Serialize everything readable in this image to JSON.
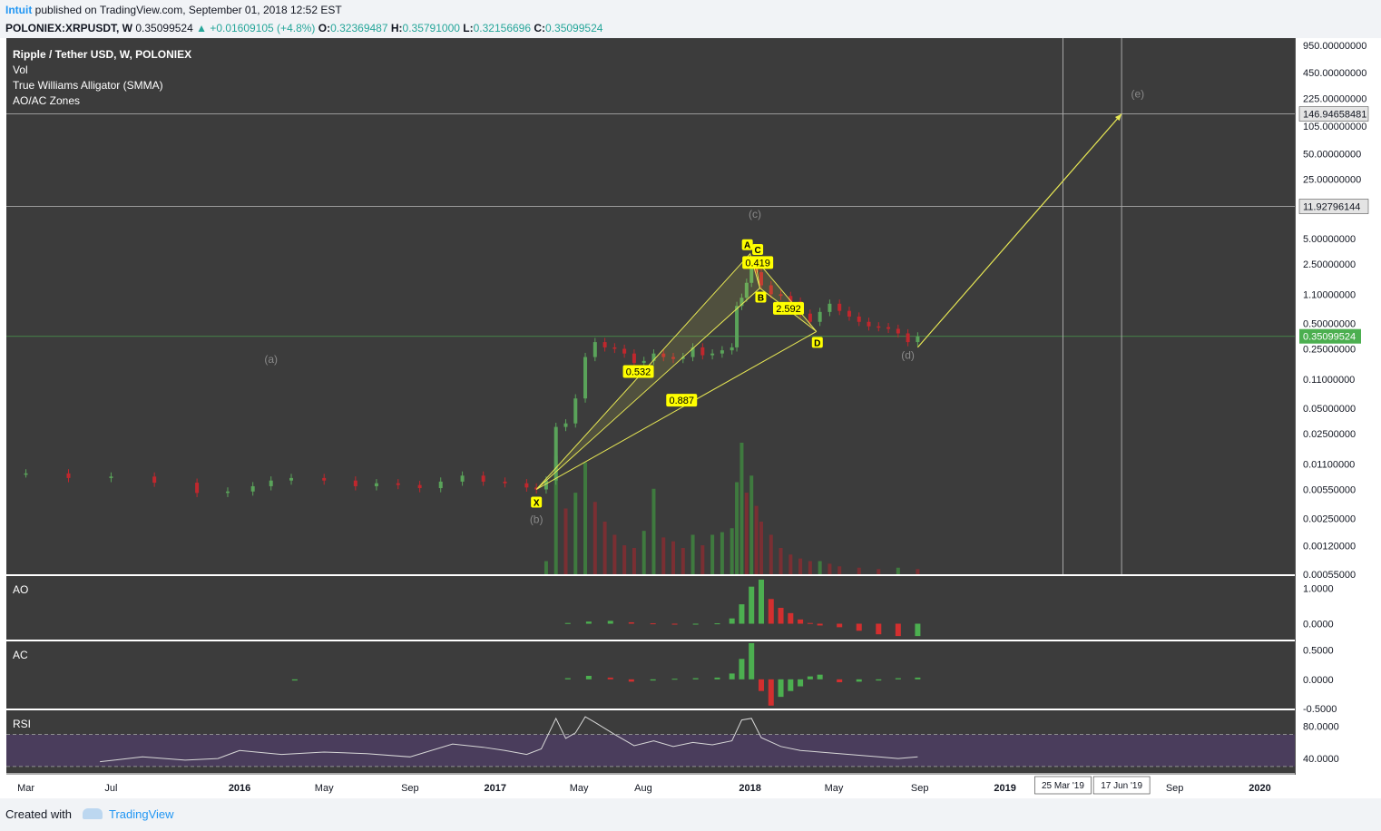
{
  "header": {
    "author": "Intuit",
    "published": "published on TradingView.com, September 01, 2018 12:52 EST",
    "symbol": "POLONIEX:XRPUSDT, W",
    "last": "0.35099524",
    "change": "▲ +0.01609105 (+4.8%)",
    "o_label": "O:",
    "o_value": "0.32369487",
    "h_label": "H:",
    "h_value": "0.35791000",
    "l_label": "L:",
    "l_value": "0.32156696",
    "c_label": "C:",
    "c_value": "0.35099524"
  },
  "footer": {
    "created_with": "Created with",
    "brand": "TradingView"
  },
  "colors": {
    "panel_bg": "#3c3c3c",
    "rsi_band": "#4a3d5c",
    "up": "#5aa35a",
    "down": "#c0272d",
    "pattern": "#e8e854",
    "label_bg": "#ffff00",
    "price_tag": "#4caf50",
    "text": "#ffffff",
    "muted": "#8a8a8a"
  },
  "chart_data": {
    "type": "candlestick",
    "scale": "log",
    "title": "Ripple / Tether USD, W, POLONIEX",
    "indicator_labels": [
      "Vol",
      "True Williams Alligator (SMMA)",
      "AO/AC Zones"
    ],
    "price_ticks": [
      "950.00000000",
      "450.00000000",
      "225.00000000",
      "105.00000000",
      "50.00000000",
      "25.00000000",
      "5.00000000",
      "2.50000000",
      "1.10000000",
      "0.50000000",
      "0.25000000",
      "0.11000000",
      "0.05000000",
      "0.02500000",
      "0.01100000",
      "0.00550000",
      "0.00250000",
      "0.00120000",
      "0.00055000"
    ],
    "price_tick_values": [
      950,
      450,
      225,
      105,
      50,
      25,
      5,
      2.5,
      1.1,
      0.5,
      0.25,
      0.11,
      0.05,
      0.025,
      0.011,
      0.0055,
      0.0025,
      0.0012,
      0.00055
    ],
    "ylim": [
      0.00055,
      1150
    ],
    "current_price": {
      "label": "0.35099524",
      "value": 0.35099524
    },
    "h_levels": [
      {
        "label": "146.94658481",
        "value": 146.94658481
      },
      {
        "label": "11.92796144",
        "value": 11.92796144
      }
    ],
    "x_ticks": [
      "Mar",
      "Jul",
      "2016",
      "May",
      "Sep",
      "2017",
      "May",
      "Aug",
      "2018",
      "May",
      "Sep",
      "2019",
      "Sep",
      "2020"
    ],
    "x_tick_dates": [
      "2015-03-01",
      "2015-07-01",
      "2016-01-01",
      "2016-05-01",
      "2016-09-01",
      "2017-01-01",
      "2017-05-01",
      "2017-08-01",
      "2018-01-01",
      "2018-05-01",
      "2018-09-01",
      "2019-01-01",
      "2019-09-01",
      "2020-01-01"
    ],
    "x_tick_bold": [
      false,
      false,
      true,
      false,
      false,
      true,
      false,
      false,
      true,
      false,
      false,
      true,
      false,
      true
    ],
    "x_range": [
      "2015-02-01",
      "2020-02-20"
    ],
    "vertical_markers": [
      {
        "label": "25 Mar '19",
        "date": "2019-03-25"
      },
      {
        "label": "17 Jun '19",
        "date": "2019-06-17"
      }
    ],
    "wave_labels": [
      {
        "text": "(a)",
        "date": "2016-02-15",
        "price": 0.17
      },
      {
        "text": "(b)",
        "date": "2017-03-01",
        "price": 0.0022
      },
      {
        "text": "(c)",
        "date": "2018-01-08",
        "price": 8.8
      },
      {
        "text": "(d)",
        "date": "2018-08-15",
        "price": 0.19
      },
      {
        "text": "(e)",
        "date": "2019-07-10",
        "price": 230
      }
    ],
    "xabcd_points": [
      {
        "name": "X",
        "date": "2017-03-01",
        "price": 0.0055
      },
      {
        "name": "A",
        "date": "2018-01-01",
        "price": 3.3
      },
      {
        "name": "B",
        "date": "2018-01-15",
        "price": 1.3
      },
      {
        "name": "C",
        "date": "2018-01-08",
        "price": 2.9
      },
      {
        "name": "D",
        "date": "2018-04-06",
        "price": 0.4
      }
    ],
    "xabcd_ratios": [
      {
        "text": "0.532",
        "date": "2017-07-25",
        "price": 0.135
      },
      {
        "text": "0.887",
        "date": "2017-09-25",
        "price": 0.062
      },
      {
        "text": "0.419",
        "date": "2018-01-12",
        "price": 2.6
      },
      {
        "text": "2.592",
        "date": "2018-02-25",
        "price": 0.75
      }
    ],
    "projection": {
      "from_date": "2018-08-29",
      "from_price": 0.26,
      "to_date": "2019-06-17",
      "to_price": 146.94658481
    },
    "price_series": [
      {
        "date": "2015-03-01",
        "value": 0.0085
      },
      {
        "date": "2015-05-01",
        "value": 0.0075
      },
      {
        "date": "2015-07-01",
        "value": 0.0078
      },
      {
        "date": "2015-09-01",
        "value": 0.0066
      },
      {
        "date": "2015-11-01",
        "value": 0.005
      },
      {
        "date": "2015-12-15",
        "value": 0.0052
      },
      {
        "date": "2016-01-20",
        "value": 0.006
      },
      {
        "date": "2016-02-15",
        "value": 0.007
      },
      {
        "date": "2016-03-15",
        "value": 0.0075
      },
      {
        "date": "2016-05-01",
        "value": 0.007
      },
      {
        "date": "2016-06-15",
        "value": 0.006
      },
      {
        "date": "2016-07-15",
        "value": 0.0065
      },
      {
        "date": "2016-08-15",
        "value": 0.0062
      },
      {
        "date": "2016-09-15",
        "value": 0.0057
      },
      {
        "date": "2016-10-15",
        "value": 0.0068
      },
      {
        "date": "2016-11-15",
        "value": 0.008
      },
      {
        "date": "2016-12-15",
        "value": 0.0068
      },
      {
        "date": "2017-01-15",
        "value": 0.0065
      },
      {
        "date": "2017-02-15",
        "value": 0.0058
      },
      {
        "date": "2017-03-01",
        "value": 0.0055
      },
      {
        "date": "2017-03-15",
        "value": 0.007
      },
      {
        "date": "2017-03-29",
        "value": 0.03
      },
      {
        "date": "2017-04-12",
        "value": 0.033
      },
      {
        "date": "2017-04-26",
        "value": 0.065
      },
      {
        "date": "2017-05-10",
        "value": 0.2
      },
      {
        "date": "2017-05-24",
        "value": 0.3
      },
      {
        "date": "2017-06-07",
        "value": 0.26
      },
      {
        "date": "2017-06-21",
        "value": 0.25
      },
      {
        "date": "2017-07-05",
        "value": 0.22
      },
      {
        "date": "2017-07-19",
        "value": 0.17
      },
      {
        "date": "2017-08-02",
        "value": 0.18
      },
      {
        "date": "2017-08-16",
        "value": 0.22
      },
      {
        "date": "2017-08-30",
        "value": 0.2
      },
      {
        "date": "2017-09-13",
        "value": 0.19
      },
      {
        "date": "2017-09-27",
        "value": 0.2
      },
      {
        "date": "2017-10-11",
        "value": 0.26
      },
      {
        "date": "2017-10-25",
        "value": 0.21
      },
      {
        "date": "2017-11-08",
        "value": 0.22
      },
      {
        "date": "2017-11-22",
        "value": 0.24
      },
      {
        "date": "2017-12-06",
        "value": 0.26
      },
      {
        "date": "2017-12-13",
        "value": 0.8
      },
      {
        "date": "2017-12-20",
        "value": 1.0
      },
      {
        "date": "2017-12-27",
        "value": 1.5
      },
      {
        "date": "2018-01-03",
        "value": 2.7
      },
      {
        "date": "2018-01-10",
        "value": 2.0
      },
      {
        "date": "2018-01-17",
        "value": 1.4
      },
      {
        "date": "2018-01-31",
        "value": 1.1
      },
      {
        "date": "2018-02-14",
        "value": 1.05
      },
      {
        "date": "2018-02-28",
        "value": 0.9
      },
      {
        "date": "2018-03-14",
        "value": 0.65
      },
      {
        "date": "2018-03-28",
        "value": 0.52
      },
      {
        "date": "2018-04-11",
        "value": 0.68
      },
      {
        "date": "2018-04-25",
        "value": 0.85
      },
      {
        "date": "2018-05-09",
        "value": 0.7
      },
      {
        "date": "2018-05-23",
        "value": 0.6
      },
      {
        "date": "2018-06-06",
        "value": 0.52
      },
      {
        "date": "2018-06-20",
        "value": 0.46
      },
      {
        "date": "2018-07-04",
        "value": 0.45
      },
      {
        "date": "2018-07-18",
        "value": 0.43
      },
      {
        "date": "2018-08-01",
        "value": 0.38
      },
      {
        "date": "2018-08-15",
        "value": 0.3
      },
      {
        "date": "2018-08-29",
        "value": 0.35
      }
    ],
    "volume_series": [
      {
        "date": "2017-03-15",
        "value": 0.1
      },
      {
        "date": "2017-03-29",
        "value": 0.9
      },
      {
        "date": "2017-04-12",
        "value": 0.5
      },
      {
        "date": "2017-04-26",
        "value": 0.62
      },
      {
        "date": "2017-05-10",
        "value": 0.85
      },
      {
        "date": "2017-05-24",
        "value": 0.55
      },
      {
        "date": "2017-06-07",
        "value": 0.4
      },
      {
        "date": "2017-06-21",
        "value": 0.3
      },
      {
        "date": "2017-07-05",
        "value": 0.22
      },
      {
        "date": "2017-07-19",
        "value": 0.2
      },
      {
        "date": "2017-08-02",
        "value": 0.33
      },
      {
        "date": "2017-08-16",
        "value": 0.65
      },
      {
        "date": "2017-08-30",
        "value": 0.28
      },
      {
        "date": "2017-09-13",
        "value": 0.25
      },
      {
        "date": "2017-09-27",
        "value": 0.2
      },
      {
        "date": "2017-10-11",
        "value": 0.3
      },
      {
        "date": "2017-10-25",
        "value": 0.22
      },
      {
        "date": "2017-11-08",
        "value": 0.3
      },
      {
        "date": "2017-11-22",
        "value": 0.32
      },
      {
        "date": "2017-12-06",
        "value": 0.35
      },
      {
        "date": "2017-12-13",
        "value": 0.7
      },
      {
        "date": "2017-12-20",
        "value": 1.0
      },
      {
        "date": "2017-12-27",
        "value": 0.62
      },
      {
        "date": "2018-01-03",
        "value": 0.75
      },
      {
        "date": "2018-01-10",
        "value": 0.52
      },
      {
        "date": "2018-01-17",
        "value": 0.4
      },
      {
        "date": "2018-01-31",
        "value": 0.3
      },
      {
        "date": "2018-02-14",
        "value": 0.2
      },
      {
        "date": "2018-02-28",
        "value": 0.15
      },
      {
        "date": "2018-03-14",
        "value": 0.12
      },
      {
        "date": "2018-03-28",
        "value": 0.1
      },
      {
        "date": "2018-04-11",
        "value": 0.1
      },
      {
        "date": "2018-04-25",
        "value": 0.08
      },
      {
        "date": "2018-05-09",
        "value": 0.06
      },
      {
        "date": "2018-06-06",
        "value": 0.05
      },
      {
        "date": "2018-07-04",
        "value": 0.04
      },
      {
        "date": "2018-08-01",
        "value": 0.05
      },
      {
        "date": "2018-08-29",
        "value": 0.04
      }
    ],
    "ao": {
      "label": "AO",
      "ticks": [
        "1.0000",
        "0.0000"
      ],
      "tick_values": [
        1.0,
        0.0
      ],
      "ylim": [
        -0.45,
        1.35
      ],
      "series": [
        {
          "date": "2017-04-15",
          "value": 0.02
        },
        {
          "date": "2017-05-15",
          "value": 0.06
        },
        {
          "date": "2017-06-15",
          "value": 0.08
        },
        {
          "date": "2017-07-15",
          "value": 0.04
        },
        {
          "date": "2017-08-15",
          "value": 0.01
        },
        {
          "date": "2017-09-15",
          "value": -0.02
        },
        {
          "date": "2017-10-15",
          "value": -0.02
        },
        {
          "date": "2017-11-15",
          "value": 0.01
        },
        {
          "date": "2017-12-06",
          "value": 0.15
        },
        {
          "date": "2017-12-20",
          "value": 0.55
        },
        {
          "date": "2018-01-03",
          "value": 1.05
        },
        {
          "date": "2018-01-17",
          "value": 1.25
        },
        {
          "date": "2018-01-31",
          "value": 0.7
        },
        {
          "date": "2018-02-14",
          "value": 0.45
        },
        {
          "date": "2018-02-28",
          "value": 0.3
        },
        {
          "date": "2018-03-14",
          "value": 0.12
        },
        {
          "date": "2018-03-28",
          "value": 0.02
        },
        {
          "date": "2018-04-11",
          "value": -0.05
        },
        {
          "date": "2018-05-09",
          "value": -0.1
        },
        {
          "date": "2018-06-06",
          "value": -0.2
        },
        {
          "date": "2018-07-04",
          "value": -0.3
        },
        {
          "date": "2018-08-01",
          "value": -0.35
        },
        {
          "date": "2018-08-29",
          "value": -0.35
        }
      ]
    },
    "ac": {
      "label": "AC",
      "ticks": [
        "0.5000",
        "0.0000",
        "-0.5000"
      ],
      "tick_values": [
        0.5,
        0.0,
        -0.5
      ],
      "ylim": [
        -0.5,
        0.65
      ],
      "series": [
        {
          "date": "2016-03-20",
          "value": -0.02
        },
        {
          "date": "2017-04-15",
          "value": 0.02
        },
        {
          "date": "2017-05-15",
          "value": 0.06
        },
        {
          "date": "2017-06-15",
          "value": 0.03
        },
        {
          "date": "2017-07-15",
          "value": -0.04
        },
        {
          "date": "2017-08-15",
          "value": -0.02
        },
        {
          "date": "2017-09-15",
          "value": 0.01
        },
        {
          "date": "2017-10-15",
          "value": 0.02
        },
        {
          "date": "2017-11-15",
          "value": 0.03
        },
        {
          "date": "2017-12-06",
          "value": 0.1
        },
        {
          "date": "2017-12-20",
          "value": 0.35
        },
        {
          "date": "2018-01-03",
          "value": 0.62
        },
        {
          "date": "2018-01-17",
          "value": -0.2
        },
        {
          "date": "2018-01-31",
          "value": -0.45
        },
        {
          "date": "2018-02-14",
          "value": -0.3
        },
        {
          "date": "2018-02-28",
          "value": -0.2
        },
        {
          "date": "2018-03-14",
          "value": -0.12
        },
        {
          "date": "2018-03-28",
          "value": 0.05
        },
        {
          "date": "2018-04-11",
          "value": 0.08
        },
        {
          "date": "2018-05-09",
          "value": -0.05
        },
        {
          "date": "2018-06-06",
          "value": -0.04
        },
        {
          "date": "2018-07-04",
          "value": -0.02
        },
        {
          "date": "2018-08-01",
          "value": 0.02
        },
        {
          "date": "2018-08-29",
          "value": 0.03
        }
      ]
    },
    "rsi": {
      "label": "RSI",
      "ticks": [
        "80.0000",
        "40.0000"
      ],
      "tick_values": [
        80,
        40
      ],
      "ylim": [
        22,
        100
      ],
      "band": [
        30,
        70
      ],
      "series": [
        {
          "date": "2015-06-15",
          "value": 36
        },
        {
          "date": "2015-08-15",
          "value": 42
        },
        {
          "date": "2015-10-15",
          "value": 38
        },
        {
          "date": "2015-12-01",
          "value": 40
        },
        {
          "date": "2016-01-01",
          "value": 50
        },
        {
          "date": "2016-03-01",
          "value": 45
        },
        {
          "date": "2016-05-01",
          "value": 48
        },
        {
          "date": "2016-07-01",
          "value": 46
        },
        {
          "date": "2016-09-01",
          "value": 42
        },
        {
          "date": "2016-11-01",
          "value": 58
        },
        {
          "date": "2016-12-15",
          "value": 54
        },
        {
          "date": "2017-01-15",
          "value": 50
        },
        {
          "date": "2017-02-15",
          "value": 45
        },
        {
          "date": "2017-03-08",
          "value": 52
        },
        {
          "date": "2017-03-29",
          "value": 90
        },
        {
          "date": "2017-04-12",
          "value": 65
        },
        {
          "date": "2017-04-26",
          "value": 72
        },
        {
          "date": "2017-05-10",
          "value": 92
        },
        {
          "date": "2017-05-24",
          "value": 85
        },
        {
          "date": "2017-06-21",
          "value": 70
        },
        {
          "date": "2017-07-19",
          "value": 56
        },
        {
          "date": "2017-08-16",
          "value": 62
        },
        {
          "date": "2017-09-13",
          "value": 55
        },
        {
          "date": "2017-10-11",
          "value": 60
        },
        {
          "date": "2017-11-08",
          "value": 57
        },
        {
          "date": "2017-12-06",
          "value": 62
        },
        {
          "date": "2017-12-20",
          "value": 88
        },
        {
          "date": "2018-01-03",
          "value": 90
        },
        {
          "date": "2018-01-17",
          "value": 66
        },
        {
          "date": "2018-02-14",
          "value": 55
        },
        {
          "date": "2018-03-14",
          "value": 50
        },
        {
          "date": "2018-04-11",
          "value": 48
        },
        {
          "date": "2018-05-09",
          "value": 46
        },
        {
          "date": "2018-06-06",
          "value": 44
        },
        {
          "date": "2018-07-04",
          "value": 42
        },
        {
          "date": "2018-08-01",
          "value": 40
        },
        {
          "date": "2018-08-29",
          "value": 42
        }
      ]
    }
  }
}
